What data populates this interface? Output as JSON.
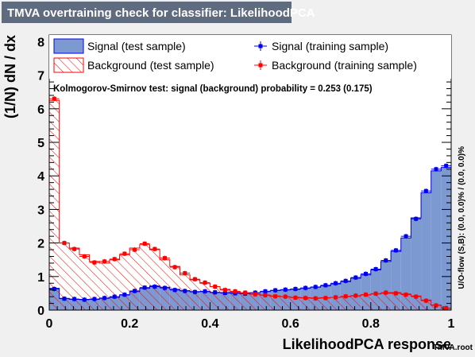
{
  "chart_data": {
    "type": "histogram",
    "title": "TMVA overtraining check for classifier: LikelihoodPCA",
    "xlabel": "LikelihoodPCA response",
    "ylabel": "(1/N) dN / dx",
    "xlim": [
      0,
      1
    ],
    "ylim": [
      0,
      8.2
    ],
    "x_ticks": [
      "0",
      "0.2",
      "0.4",
      "0.6",
      "0.8",
      "1"
    ],
    "y_ticks": [
      "0",
      "1",
      "2",
      "3",
      "4",
      "5",
      "6",
      "7",
      "8"
    ],
    "bins": 40,
    "ks_text": "Kolmogorov-Smirnov test: signal (background) probability = 0.253 (0.175)",
    "side_label": "U/O-flow (S,B): (0.0, 0.0)% / (0.0, 0.0)%",
    "footer": "TMVA.root",
    "legend": {
      "signal_test": "Signal (test sample)",
      "background_test": "Background (test sample)",
      "signal_train": "Signal (training sample)",
      "background_train": "Background (training sample)"
    },
    "series": [
      {
        "name": "Signal (test sample)",
        "style": "filled-histogram",
        "color": "#7d99d1",
        "values": [
          0.65,
          0.35,
          0.32,
          0.32,
          0.32,
          0.35,
          0.38,
          0.45,
          0.55,
          0.65,
          0.72,
          0.68,
          0.62,
          0.58,
          0.55,
          0.55,
          0.52,
          0.52,
          0.52,
          0.5,
          0.52,
          0.55,
          0.58,
          0.6,
          0.62,
          0.65,
          0.68,
          0.72,
          0.78,
          0.85,
          0.95,
          1.05,
          1.2,
          1.45,
          1.75,
          2.15,
          2.75,
          3.5,
          4.15,
          4.25
        ]
      },
      {
        "name": "Background (test sample)",
        "style": "hatched-histogram",
        "color": "#ff0000",
        "values": [
          6.25,
          2.0,
          1.85,
          1.65,
          1.45,
          1.4,
          1.5,
          1.65,
          1.85,
          1.95,
          1.8,
          1.5,
          1.3,
          1.05,
          0.9,
          0.8,
          0.7,
          0.62,
          0.55,
          0.5,
          0.48,
          0.45,
          0.42,
          0.4,
          0.38,
          0.37,
          0.36,
          0.37,
          0.38,
          0.4,
          0.42,
          0.45,
          0.48,
          0.5,
          0.52,
          0.48,
          0.42,
          0.3,
          0.15,
          0.05
        ]
      },
      {
        "name": "Signal (training sample)",
        "style": "markers",
        "color": "#0000ee",
        "values": [
          0.63,
          0.34,
          0.33,
          0.31,
          0.33,
          0.36,
          0.4,
          0.46,
          0.57,
          0.67,
          0.7,
          0.66,
          0.6,
          0.57,
          0.54,
          0.56,
          0.53,
          0.51,
          0.5,
          0.49,
          0.52,
          0.56,
          0.59,
          0.61,
          0.63,
          0.66,
          0.69,
          0.74,
          0.8,
          0.87,
          0.97,
          1.08,
          1.22,
          1.48,
          1.78,
          2.2,
          2.72,
          3.55,
          4.2,
          4.3
        ]
      },
      {
        "name": "Background (training sample)",
        "style": "markers",
        "color": "#ff0000",
        "values": [
          6.3,
          2.0,
          1.82,
          1.6,
          1.42,
          1.45,
          1.52,
          1.68,
          1.8,
          1.98,
          1.82,
          1.55,
          1.28,
          1.1,
          0.92,
          0.82,
          0.7,
          0.6,
          0.56,
          0.52,
          0.47,
          0.44,
          0.41,
          0.4,
          0.37,
          0.36,
          0.35,
          0.36,
          0.38,
          0.41,
          0.43,
          0.46,
          0.49,
          0.52,
          0.5,
          0.46,
          0.4,
          0.28,
          0.14,
          0.06
        ]
      }
    ]
  }
}
